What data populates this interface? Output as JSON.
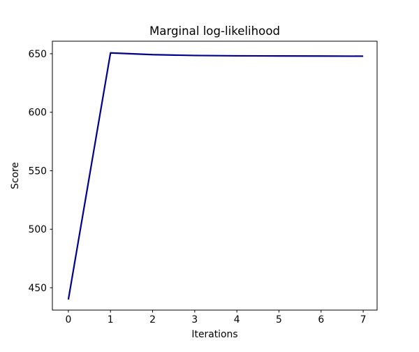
{
  "figure": {
    "background": "#ffffff",
    "text_color": "#000000",
    "spine_color": "#000000"
  },
  "chart_data": {
    "type": "line",
    "title": "Marginal log-likelihood",
    "xlabel": "Iterations",
    "ylabel": "Score",
    "x": [
      0,
      1,
      2,
      3,
      4,
      5,
      6,
      7
    ],
    "y": [
      440,
      650.7,
      649.2,
      648.5,
      648.2,
      648.1,
      648.0,
      647.9
    ],
    "xticks": [
      0,
      1,
      2,
      3,
      4,
      5,
      6,
      7
    ],
    "xtick_labels": [
      "0",
      "1",
      "2",
      "3",
      "4",
      "5",
      "6",
      "7"
    ],
    "yticks": [
      450,
      500,
      550,
      600,
      650
    ],
    "ytick_labels": [
      "450",
      "500",
      "550",
      "600",
      "650"
    ],
    "xlim": [
      -0.38,
      7.33
    ],
    "ylim": [
      430.9,
      660.7
    ],
    "grid": false,
    "legend": false,
    "line_color": "#00008B",
    "line_width": 2.2
  }
}
